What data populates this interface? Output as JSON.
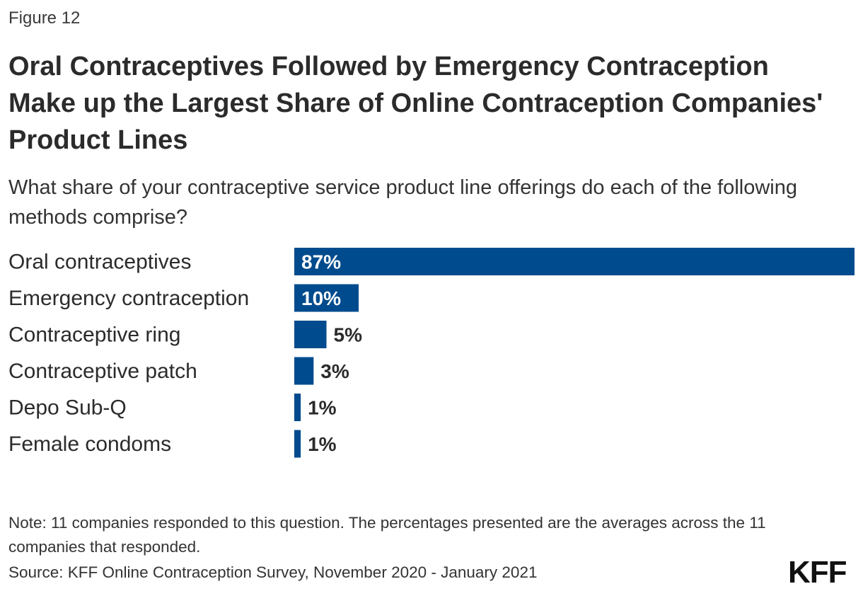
{
  "figure_label": "Figure 12",
  "title": "Oral Contraceptives Followed by Emergency Contraception Make up the Largest Share of Online Contraception Companies' Product Lines",
  "subtitle": "What share of your contraceptive service product line offerings do each of the following methods comprise?",
  "chart_data": {
    "type": "bar",
    "orientation": "horizontal",
    "categories": [
      "Oral contraceptives",
      "Emergency contraception",
      "Contraceptive ring",
      "Contraceptive patch",
      "Depo Sub-Q",
      "Female condoms"
    ],
    "values": [
      87,
      10,
      5,
      3,
      1,
      1
    ],
    "value_labels": [
      "87%",
      "10%",
      "5%",
      "3%",
      "1%",
      "1%"
    ],
    "unit": "%",
    "xlim": [
      0,
      87
    ],
    "grid": false,
    "legend": "none",
    "bar_color": "#004B8D"
  },
  "note": "Note: 11 companies responded to this question. The percentages presented are the averages across the 11 companies that responded.",
  "source": "Source: KFF Online Contraception Survey, November 2020 - January 2021",
  "logo": "KFF"
}
